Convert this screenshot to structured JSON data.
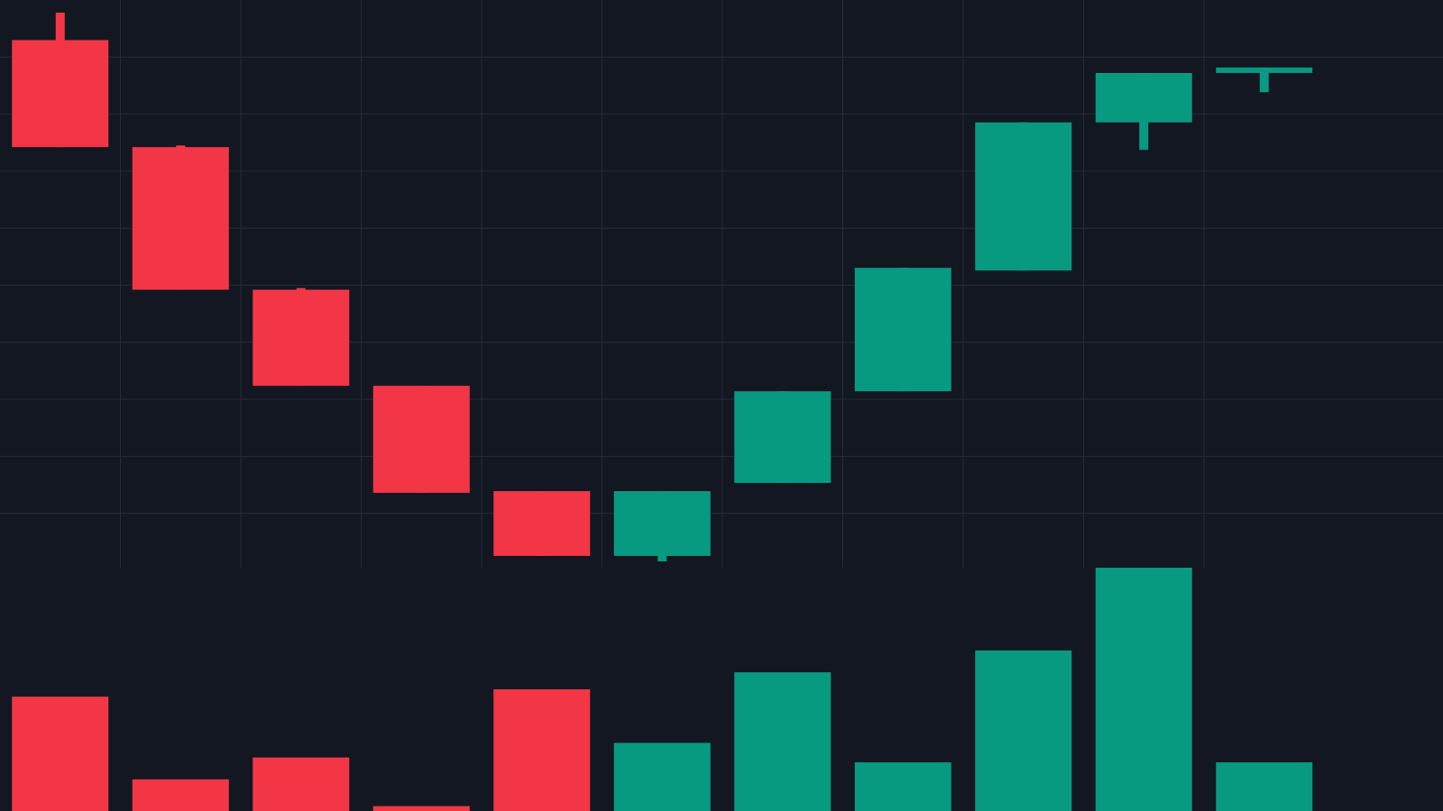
{
  "theme": {
    "background": "#131722",
    "grid": "#262B36",
    "up": "#089981",
    "down": "#F23645"
  },
  "chart_data": {
    "type": "candlestick",
    "title": "",
    "xlabel": "",
    "ylabel": "",
    "grid": true,
    "legend": "none",
    "price_range": [
      0,
      100
    ],
    "volume_range": [
      0,
      100
    ],
    "candles": [
      {
        "index": 0,
        "open": 95.0,
        "high": 100.0,
        "low": 75.5,
        "close": 75.5,
        "direction": "down",
        "volume": 47
      },
      {
        "index": 1,
        "open": 75.5,
        "high": 75.8,
        "low": 49.5,
        "close": 49.5,
        "direction": "down",
        "volume": 13
      },
      {
        "index": 2,
        "open": 49.5,
        "high": 49.8,
        "low": 32.0,
        "close": 32.0,
        "direction": "down",
        "volume": 22
      },
      {
        "index": 3,
        "open": 32.0,
        "high": 32.0,
        "low": 12.5,
        "close": 12.5,
        "direction": "down",
        "volume": 2
      },
      {
        "index": 4,
        "open": 12.8,
        "high": 12.8,
        "low": 1.0,
        "close": 1.0,
        "direction": "down",
        "volume": 50
      },
      {
        "index": 5,
        "open": 1.0,
        "high": 12.8,
        "low": 0.0,
        "close": 12.8,
        "direction": "up",
        "volume": 28
      },
      {
        "index": 6,
        "open": 14.3,
        "high": 31.0,
        "low": 14.3,
        "close": 31.0,
        "direction": "up",
        "volume": 57
      },
      {
        "index": 7,
        "open": 31.0,
        "high": 53.5,
        "low": 31.0,
        "close": 53.5,
        "direction": "up",
        "volume": 20
      },
      {
        "index": 8,
        "open": 53.0,
        "high": 80.0,
        "low": 53.0,
        "close": 80.0,
        "direction": "up",
        "volume": 66
      },
      {
        "index": 9,
        "open": 80.0,
        "high": 89.0,
        "low": 75.0,
        "close": 89.0,
        "direction": "up",
        "volume": 100
      },
      {
        "index": 10,
        "open": 89.4,
        "high": 90.0,
        "low": 85.5,
        "close": 90.0,
        "direction": "up",
        "volume": 20
      }
    ]
  }
}
